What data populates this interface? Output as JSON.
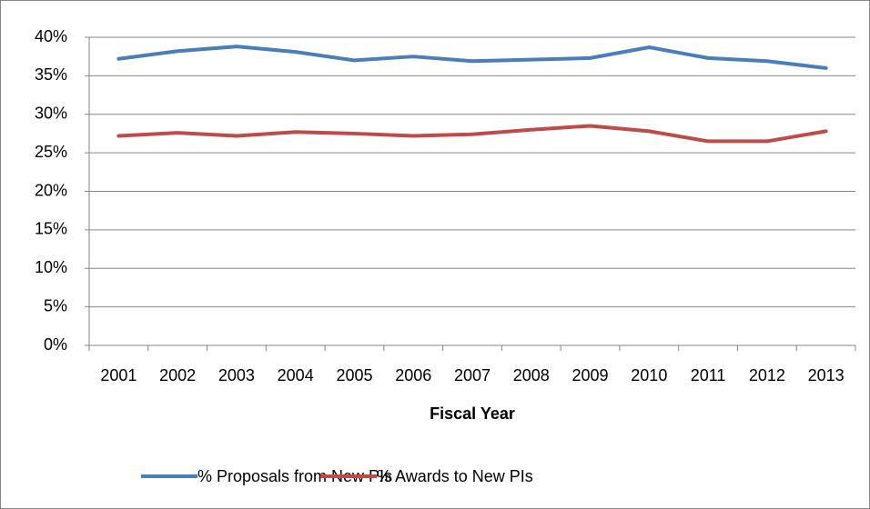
{
  "chart_data": {
    "type": "line",
    "x_label": "Fiscal Year",
    "categories": [
      "2001",
      "2002",
      "2003",
      "2004",
      "2005",
      "2006",
      "2007",
      "2008",
      "2009",
      "2010",
      "2011",
      "2012",
      "2013"
    ],
    "series": [
      {
        "name": "% Proposals from New PIs",
        "color": "#4a7ebb",
        "values": [
          37.2,
          38.2,
          38.8,
          38.1,
          37.0,
          37.5,
          36.9,
          37.1,
          37.3,
          38.7,
          37.3,
          36.9,
          36.0
        ]
      },
      {
        "name": "% Awards to New PIs",
        "color": "#be4b48",
        "values": [
          27.2,
          27.6,
          27.2,
          27.7,
          27.5,
          27.2,
          27.4,
          28.0,
          28.5,
          27.8,
          26.5,
          26.5,
          27.8
        ]
      }
    ],
    "ylim": [
      0,
      40
    ],
    "yticks": [
      {
        "value": 0,
        "label": "0%"
      },
      {
        "value": 5,
        "label": "5%"
      },
      {
        "value": 10,
        "label": "10%"
      },
      {
        "value": 15,
        "label": "15%"
      },
      {
        "value": 20,
        "label": "20%"
      },
      {
        "value": 25,
        "label": "25%"
      },
      {
        "value": 30,
        "label": "30%"
      },
      {
        "value": 35,
        "label": "35%"
      },
      {
        "value": 40,
        "label": "40%"
      }
    ],
    "grid": true,
    "legend": "bottom"
  }
}
